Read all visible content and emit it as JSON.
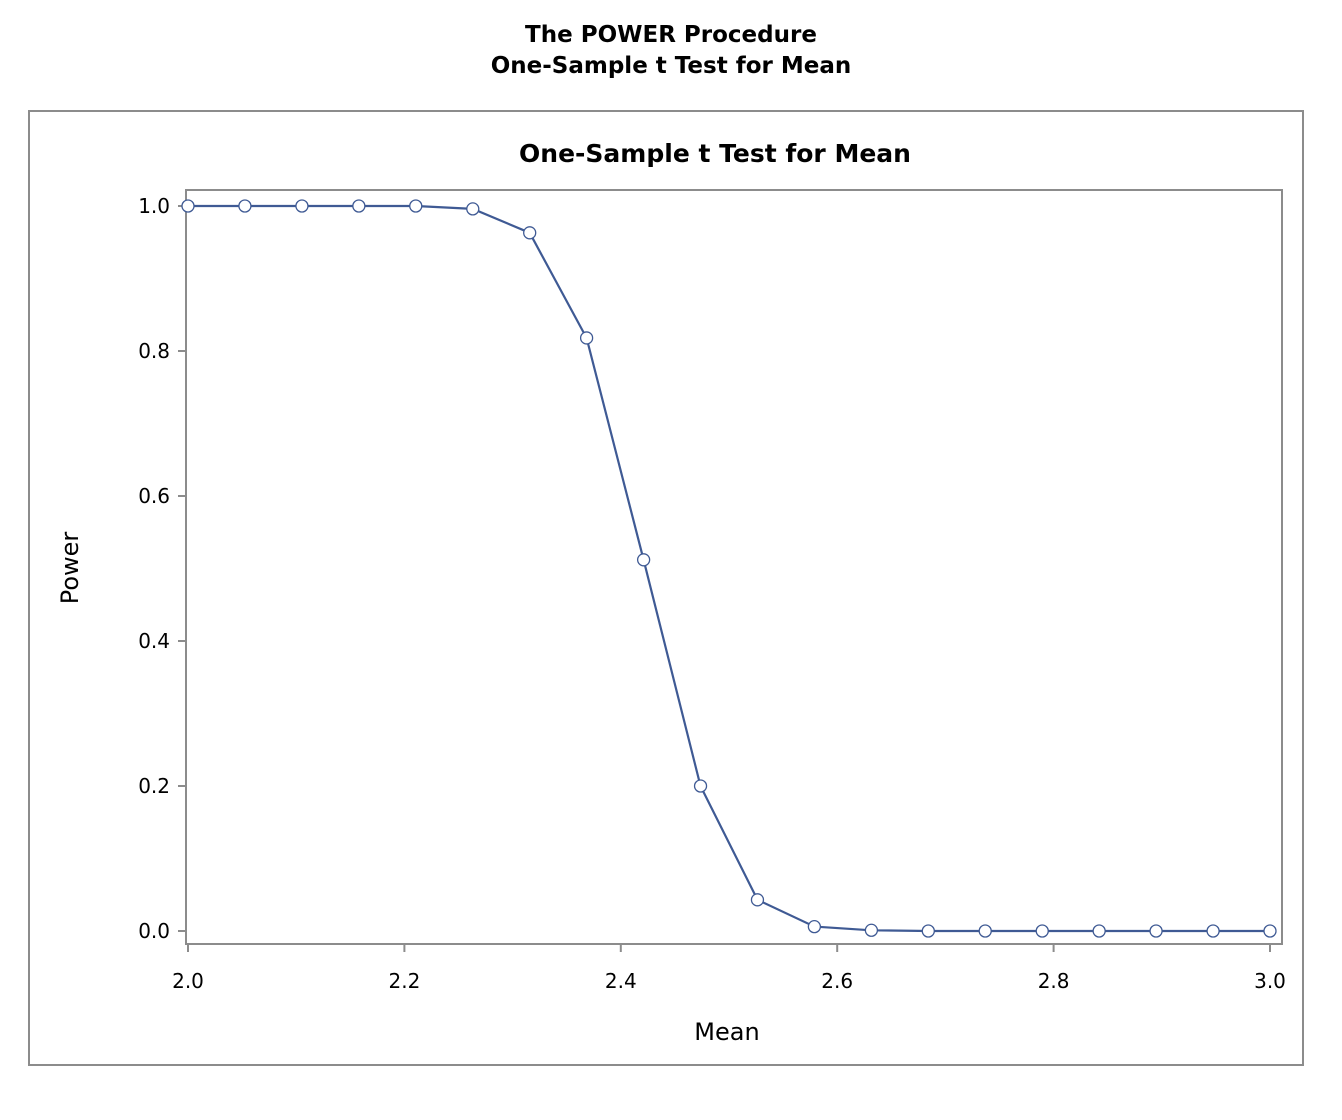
{
  "header": {
    "title": "The POWER Procedure",
    "subtitle": "One-Sample t Test for Mean"
  },
  "chart_data": {
    "type": "line",
    "title": "One-Sample t Test for Mean",
    "xlabel": "Mean",
    "ylabel": "Power",
    "xlim": [
      2.0,
      3.0
    ],
    "ylim": [
      0.0,
      1.0
    ],
    "xticks": [
      "2.0",
      "2.2",
      "2.4",
      "2.6",
      "2.8",
      "3.0"
    ],
    "yticks": [
      "0.0",
      "0.2",
      "0.4",
      "0.6",
      "0.8",
      "1.0"
    ],
    "grid": false,
    "markers": "open-circle",
    "colors": {
      "line": "#3f5a94",
      "frame": "#8c8c8c"
    },
    "series": [
      {
        "x": [
          2.0,
          2.0526,
          2.1053,
          2.1579,
          2.2105,
          2.2632,
          2.3158,
          2.3684,
          2.4211,
          2.4737,
          2.5263,
          2.5789,
          2.6316,
          2.6842,
          2.7368,
          2.7895,
          2.8421,
          2.8947,
          2.9474,
          3.0
        ],
        "y": [
          1.0,
          1.0,
          1.0,
          1.0,
          1.0,
          0.996,
          0.963,
          0.818,
          0.512,
          0.2,
          0.043,
          0.006,
          0.001,
          0.0,
          0.0,
          0.0,
          0.0,
          0.0,
          0.0,
          0.0
        ]
      }
    ]
  }
}
